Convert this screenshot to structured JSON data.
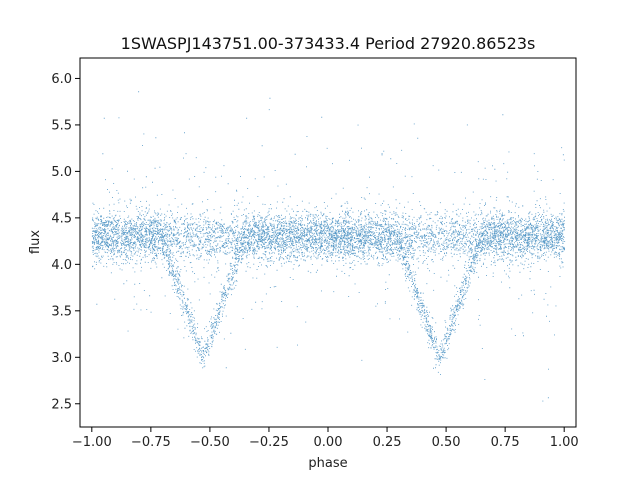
{
  "chart_data": {
    "type": "scatter",
    "title": "1SWASPJ143751.00-373433.4 Period 27920.86523s",
    "xlabel": "phase",
    "ylabel": "flux",
    "xlim": [
      -1.05,
      1.05
    ],
    "ylim": [
      2.25,
      6.22
    ],
    "xticks": [
      -1.0,
      -0.75,
      -0.5,
      -0.25,
      0.0,
      0.25,
      0.5,
      0.75,
      1.0
    ],
    "xtick_labels": [
      "−1.00",
      "−0.75",
      "−0.50",
      "−0.25",
      "0.00",
      "0.25",
      "0.50",
      "0.75",
      "1.00"
    ],
    "yticks": [
      2.5,
      3.0,
      3.5,
      4.0,
      4.5,
      5.0,
      5.5,
      6.0
    ],
    "ytick_labels": [
      "2.5",
      "3.0",
      "3.5",
      "4.0",
      "4.5",
      "5.0",
      "5.5",
      "6.0"
    ],
    "grid": false,
    "marker_color": "#1f77b4",
    "series": [
      {
        "x_range": [
          -1.0,
          1.0
        ],
        "baseline_flux": 4.3,
        "scatter_spread": 0.13,
        "eclipse_phases": [
          -0.53,
          0.47
        ],
        "eclipse_min_flux": 3.0,
        "eclipse_half_width": 0.18
      }
    ]
  }
}
